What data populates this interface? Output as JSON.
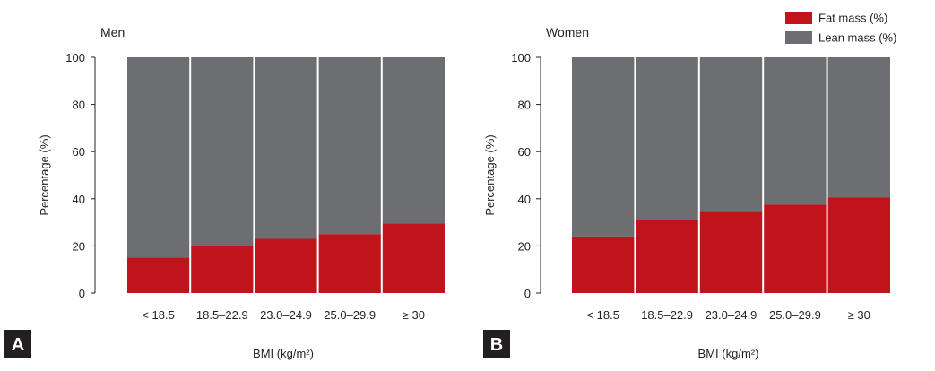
{
  "legend": {
    "items": [
      {
        "label": "Fat mass (%)",
        "color": "#c0141c"
      },
      {
        "label": "Lean mass (%)",
        "color": "#6d6e71"
      }
    ],
    "placement": "top-right"
  },
  "colors": {
    "fat": "#c0141c",
    "lean": "#6d6e71",
    "axis": "#231f20",
    "badge": "#231f20"
  },
  "chart_data": [
    {
      "type": "bar",
      "stacked": true,
      "panel_badge": "A",
      "title": "Men",
      "xlabel": "BMI (kg/m²)",
      "ylabel": "Percentage (%)",
      "ylim": [
        0,
        100
      ],
      "yticks": [
        "0",
        "20",
        "40",
        "60",
        "80",
        "100"
      ],
      "grid": false,
      "categories": [
        "< 18.5",
        "18.5–22.9",
        "23.0–24.9",
        "25.0–29.9",
        "≥ 30"
      ],
      "series": [
        {
          "name": "Fat mass (%)",
          "values": [
            15,
            20,
            23,
            25,
            29.5
          ]
        },
        {
          "name": "Lean mass (%)",
          "values": [
            85,
            80,
            77,
            75,
            70.5
          ]
        }
      ]
    },
    {
      "type": "bar",
      "stacked": true,
      "panel_badge": "B",
      "title": "Women",
      "xlabel": "BMI (kg/m²)",
      "ylabel": "Percentage (%)",
      "ylim": [
        0,
        100
      ],
      "yticks": [
        "0",
        "20",
        "40",
        "60",
        "80",
        "100"
      ],
      "grid": false,
      "categories": [
        "< 18.5",
        "18.5–22.9",
        "23.0–24.9",
        "25.0–29.9",
        "≥ 30"
      ],
      "series": [
        {
          "name": "Fat mass (%)",
          "values": [
            24,
            31,
            34.5,
            37.5,
            40.5
          ]
        },
        {
          "name": "Lean mass (%)",
          "values": [
            76,
            69,
            65.5,
            62.5,
            59.5
          ]
        }
      ]
    }
  ]
}
